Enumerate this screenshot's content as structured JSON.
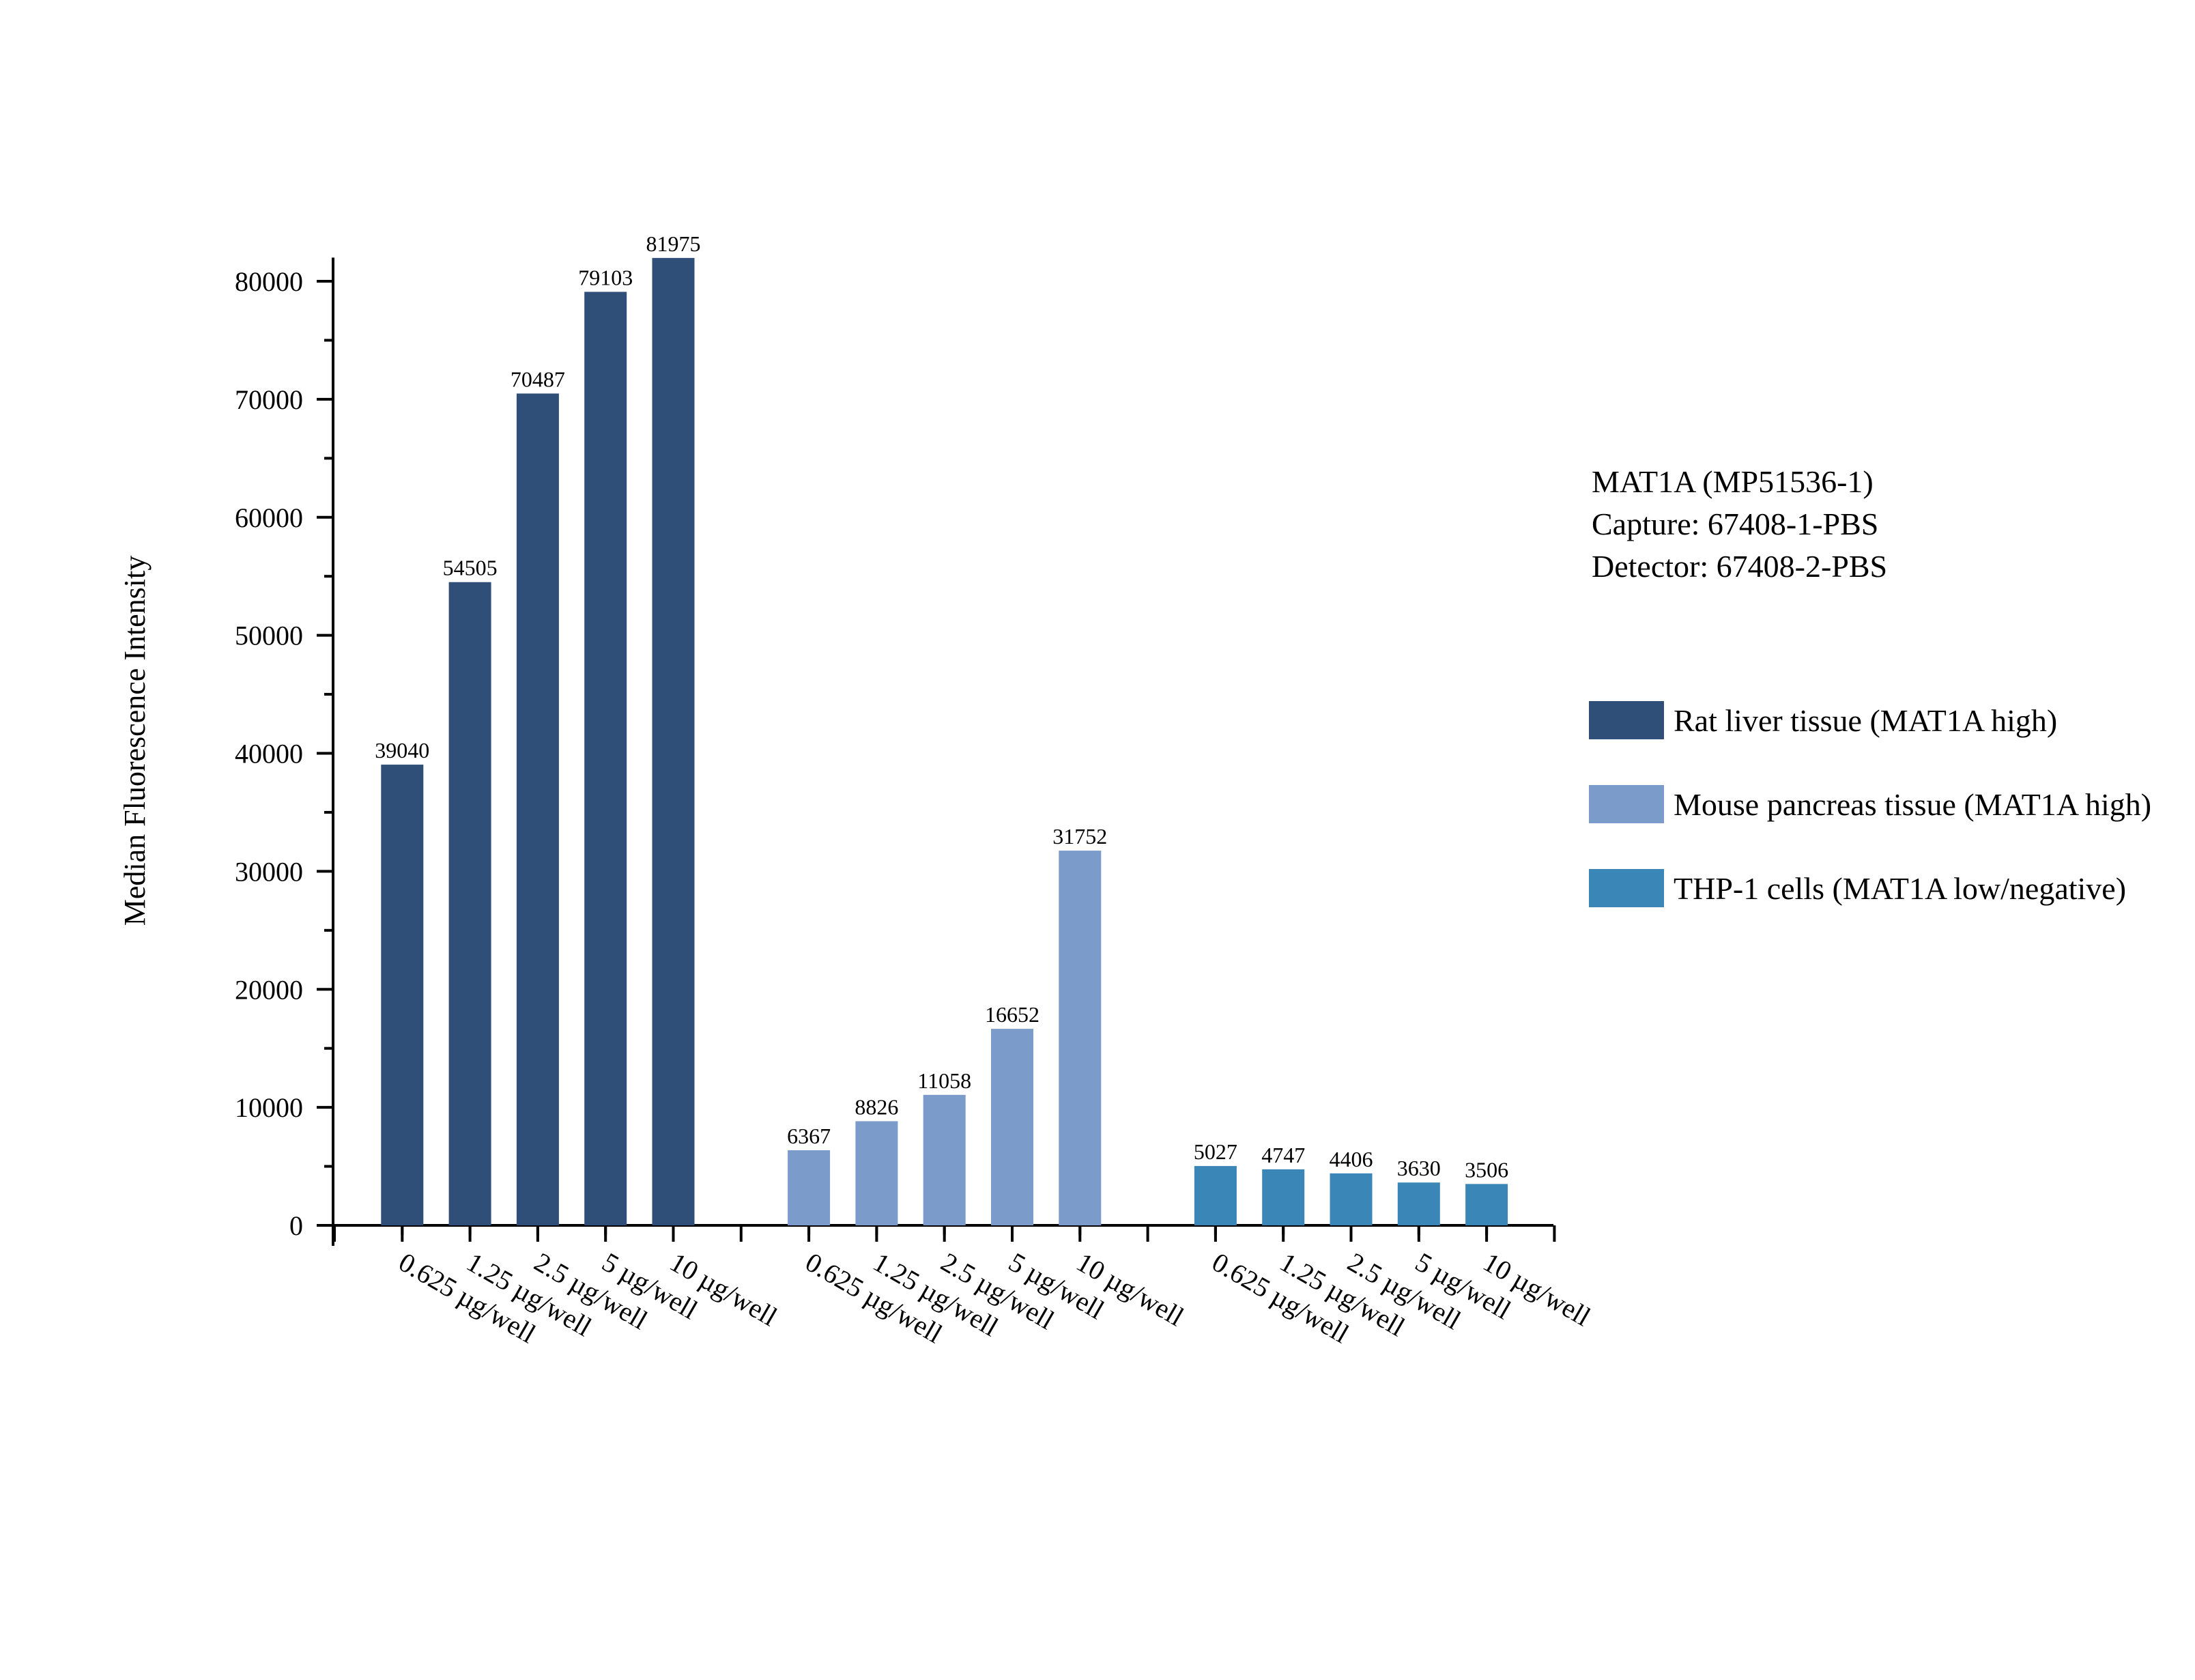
{
  "chart_data": {
    "type": "bar",
    "ylabel": "Median Fluorescence Intensity",
    "xlabel": "",
    "ylim": [
      0,
      82000
    ],
    "yticks": [
      0,
      10000,
      20000,
      30000,
      40000,
      50000,
      60000,
      70000,
      80000
    ],
    "categories": [
      "0.625 µg/well",
      "1.25 µg/well",
      "2.5 µg/well",
      "5 µg/well",
      "10 µg/well"
    ],
    "series": [
      {
        "name": "Rat liver tissue (MAT1A high)",
        "color": "#2f4f78",
        "values": [
          39040,
          54505,
          70487,
          79103,
          81975
        ]
      },
      {
        "name": "Mouse pancreas tissue (MAT1A high)",
        "color": "#7b9ccb",
        "values": [
          6367,
          8826,
          11058,
          16652,
          31752
        ]
      },
      {
        "name": "THP-1 cells (MAT1A  low/negative)",
        "color": "#3a86b7",
        "values": [
          5027,
          4747,
          4406,
          3630,
          3506
        ]
      }
    ],
    "legend_position": "right",
    "grid": false
  },
  "info": {
    "line1": "MAT1A (MP51536-1)",
    "line2": "Capture: 67408-1-PBS",
    "line3": "Detector: 67408-2-PBS"
  }
}
